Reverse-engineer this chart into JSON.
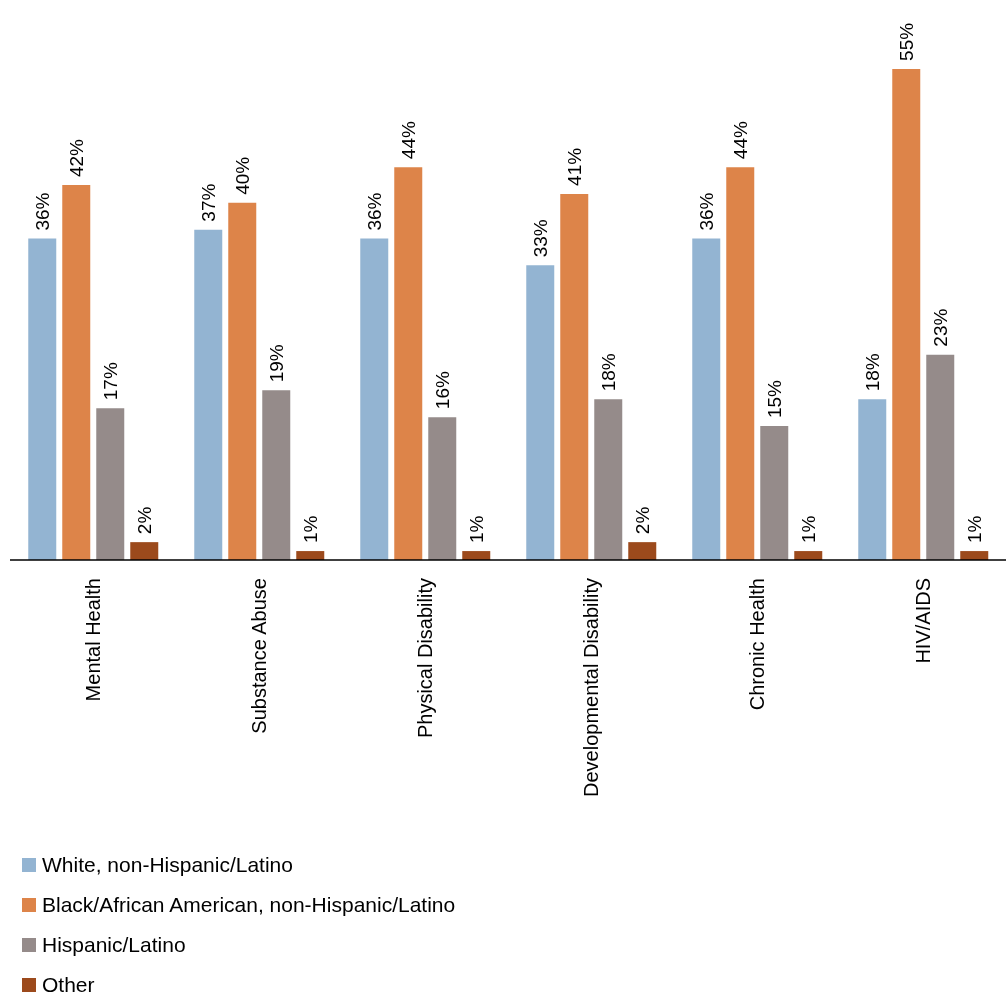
{
  "chart_data": {
    "type": "bar",
    "categories": [
      "Mental Health",
      "Substance Abuse",
      "Physical Disability",
      "Developmental Disability",
      "Chronic Health",
      "HIV/AIDS"
    ],
    "legend": "bottom left",
    "series": [
      {
        "name": "White, non-Hispanic/Latino",
        "color": "#93b4d2",
        "values": [
          36,
          37,
          36,
          33,
          36,
          18
        ],
        "value_labels": [
          "36%",
          "37%",
          "36%",
          "33%",
          "36%",
          "18%"
        ]
      },
      {
        "name": "Black/African American, non-Hispanic/Latino",
        "color": "#dd8449",
        "values": [
          42,
          40,
          44,
          41,
          44,
          55
        ],
        "value_labels": [
          "42%",
          "40%",
          "44%",
          "41%",
          "44%",
          "55%"
        ]
      },
      {
        "name": "Hispanic/Latino",
        "color": "#958b8a",
        "values": [
          17,
          19,
          16,
          18,
          15,
          23
        ],
        "value_labels": [
          "17%",
          "19%",
          "16%",
          "18%",
          "15%",
          "23%"
        ]
      },
      {
        "name": "Other",
        "color": "#9c4a1c",
        "values": [
          2,
          1,
          1,
          2,
          1,
          1
        ],
        "value_labels": [
          "2%",
          "1%",
          "1%",
          "2%",
          "1%",
          "1%"
        ]
      }
    ]
  }
}
